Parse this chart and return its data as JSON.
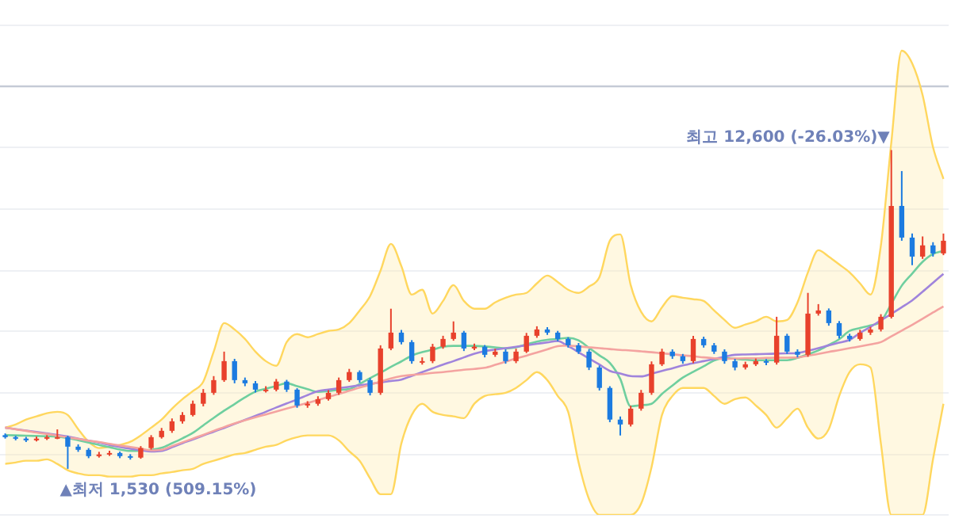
{
  "chart_data": {
    "type": "candlestick",
    "categories": [
      null,
      null,
      null,
      null,
      null,
      null,
      null,
      null,
      null,
      null,
      null,
      null,
      null,
      null,
      null,
      null,
      null,
      null,
      null,
      null,
      null,
      null,
      null,
      null,
      null,
      null,
      null,
      null,
      null,
      null,
      null,
      null,
      null,
      null,
      null,
      null,
      null,
      null,
      null,
      null,
      null,
      null,
      null,
      null,
      null,
      null,
      null,
      null,
      null,
      null,
      null,
      null,
      null,
      null,
      null,
      null,
      null,
      null,
      null,
      null,
      null,
      null,
      null,
      null,
      null,
      null,
      null,
      null,
      null,
      null,
      null,
      null,
      null,
      null,
      null,
      null,
      null,
      null,
      null,
      null,
      null,
      null,
      null,
      null,
      null,
      null,
      null,
      null,
      null,
      null,
      null
    ],
    "ohlc": [
      [
        2700,
        2760,
        2580,
        2630
      ],
      [
        2630,
        2680,
        2520,
        2580
      ],
      [
        2580,
        2640,
        2460,
        2520
      ],
      [
        2520,
        2650,
        2480,
        2580
      ],
      [
        2580,
        2700,
        2530,
        2630
      ],
      [
        2630,
        2900,
        2560,
        2630
      ],
      [
        2630,
        2680,
        1530,
        2300
      ],
      [
        2300,
        2380,
        2120,
        2190
      ],
      [
        2190,
        2250,
        1900,
        1970
      ],
      [
        1970,
        2120,
        1920,
        2030
      ],
      [
        2030,
        2160,
        1980,
        2080
      ],
      [
        2080,
        2130,
        1900,
        1970
      ],
      [
        1970,
        2040,
        1850,
        1920
      ],
      [
        1920,
        2320,
        1880,
        2250
      ],
      [
        2250,
        2700,
        2200,
        2630
      ],
      [
        2630,
        2950,
        2580,
        2850
      ],
      [
        2850,
        3280,
        2780,
        3180
      ],
      [
        3180,
        3500,
        3100,
        3400
      ],
      [
        3400,
        3900,
        3350,
        3790
      ],
      [
        3790,
        4300,
        3700,
        4170
      ],
      [
        4170,
        4750,
        4100,
        4610
      ],
      [
        4610,
        5600,
        4550,
        5270
      ],
      [
        5270,
        5350,
        4500,
        4610
      ],
      [
        4610,
        4700,
        4400,
        4500
      ],
      [
        4500,
        4580,
        4180,
        4280
      ],
      [
        4280,
        4400,
        4180,
        4280
      ],
      [
        4280,
        4650,
        4220,
        4560
      ],
      [
        4560,
        4620,
        4200,
        4280
      ],
      [
        4280,
        4330,
        3650,
        3730
      ],
      [
        3730,
        3880,
        3650,
        3790
      ],
      [
        3790,
        4050,
        3720,
        3950
      ],
      [
        3950,
        4260,
        3900,
        4170
      ],
      [
        4170,
        4700,
        4100,
        4610
      ],
      [
        4610,
        5000,
        4550,
        4890
      ],
      [
        4890,
        4950,
        4520,
        4610
      ],
      [
        4610,
        4680,
        4080,
        4170
      ],
      [
        4170,
        5820,
        4100,
        5710
      ],
      [
        5710,
        7090,
        5650,
        6260
      ],
      [
        6260,
        6350,
        5850,
        5930
      ],
      [
        5930,
        6000,
        5180,
        5270
      ],
      [
        5270,
        5400,
        5150,
        5270
      ],
      [
        5270,
        5870,
        5200,
        5770
      ],
      [
        5770,
        6150,
        5700,
        6040
      ],
      [
        6040,
        6650,
        5980,
        6260
      ],
      [
        6260,
        6320,
        5620,
        5710
      ],
      [
        5710,
        5880,
        5650,
        5770
      ],
      [
        5770,
        5830,
        5400,
        5490
      ],
      [
        5490,
        5700,
        5420,
        5600
      ],
      [
        5600,
        5680,
        5180,
        5270
      ],
      [
        5270,
        5700,
        5200,
        5600
      ],
      [
        5600,
        6250,
        5550,
        6150
      ],
      [
        6150,
        6480,
        6080,
        6370
      ],
      [
        6370,
        6450,
        6180,
        6260
      ],
      [
        6260,
        6320,
        5960,
        6040
      ],
      [
        6040,
        6100,
        5740,
        5820
      ],
      [
        5820,
        5900,
        5520,
        5600
      ],
      [
        5600,
        5680,
        4960,
        5050
      ],
      [
        5050,
        5120,
        4250,
        4340
      ],
      [
        4340,
        4400,
        3150,
        3240
      ],
      [
        3240,
        3350,
        2690,
        3070
      ],
      [
        3070,
        3720,
        3000,
        3620
      ],
      [
        3620,
        4270,
        3550,
        4170
      ],
      [
        4170,
        5260,
        4100,
        5160
      ],
      [
        5160,
        5700,
        5100,
        5600
      ],
      [
        5600,
        5680,
        5350,
        5440
      ],
      [
        5440,
        5520,
        5180,
        5270
      ],
      [
        5270,
        6150,
        5200,
        6040
      ],
      [
        6040,
        6120,
        5740,
        5820
      ],
      [
        5820,
        5900,
        5520,
        5600
      ],
      [
        5600,
        5680,
        5180,
        5270
      ],
      [
        5270,
        5350,
        4950,
        5050
      ],
      [
        5050,
        5250,
        4980,
        5160
      ],
      [
        5160,
        5360,
        5100,
        5270
      ],
      [
        5270,
        5340,
        5130,
        5220
      ],
      [
        5220,
        6810,
        5150,
        6150
      ],
      [
        6150,
        6220,
        5520,
        5600
      ],
      [
        5600,
        5680,
        5400,
        5490
      ],
      [
        5490,
        7640,
        5420,
        6920
      ],
      [
        6920,
        7250,
        6850,
        7030
      ],
      [
        7030,
        7100,
        6500,
        6590
      ],
      [
        6590,
        6660,
        6060,
        6150
      ],
      [
        6150,
        6220,
        5950,
        6040
      ],
      [
        6040,
        6360,
        5980,
        6260
      ],
      [
        6260,
        6460,
        6180,
        6370
      ],
      [
        6370,
        6900,
        6300,
        6810
      ],
      [
        6810,
        12600,
        6750,
        10660
      ],
      [
        10660,
        11870,
        9450,
        9560
      ],
      [
        9560,
        9700,
        8600,
        8900
      ],
      [
        8900,
        9600,
        8820,
        9290
      ],
      [
        9290,
        9400,
        8900,
        9010
      ],
      [
        9010,
        9700,
        8950,
        9450
      ]
    ],
    "colors": [
      "#1c7be0",
      "#1c7be0",
      "#1c7be0",
      "#e8412c",
      "#e8412c",
      "#e8412c",
      "#1c7be0",
      "#1c7be0",
      "#1c7be0",
      "#e8412c",
      "#e8412c",
      "#1c7be0",
      "#1c7be0",
      "#e8412c",
      "#e8412c",
      "#e8412c",
      "#e8412c",
      "#e8412c",
      "#e8412c",
      "#e8412c",
      "#e8412c",
      "#e8412c",
      "#1c7be0",
      "#1c7be0",
      "#1c7be0",
      "#e8412c",
      "#e8412c",
      "#1c7be0",
      "#1c7be0",
      "#e8412c",
      "#e8412c",
      "#e8412c",
      "#e8412c",
      "#e8412c",
      "#1c7be0",
      "#1c7be0",
      "#e8412c",
      "#e8412c",
      "#1c7be0",
      "#1c7be0",
      "#e8412c",
      "#e8412c",
      "#e8412c",
      "#e8412c",
      "#1c7be0",
      "#e8412c",
      "#1c7be0",
      "#e8412c",
      "#1c7be0",
      "#e8412c",
      "#e8412c",
      "#e8412c",
      "#1c7be0",
      "#1c7be0",
      "#1c7be0",
      "#1c7be0",
      "#1c7be0",
      "#1c7be0",
      "#1c7be0",
      "#1c7be0",
      "#e8412c",
      "#e8412c",
      "#e8412c",
      "#e8412c",
      "#1c7be0",
      "#1c7be0",
      "#e8412c",
      "#1c7be0",
      "#1c7be0",
      "#1c7be0",
      "#1c7be0",
      "#e8412c",
      "#e8412c",
      "#1c7be0",
      "#e8412c",
      "#1c7be0",
      "#1c7be0",
      "#e8412c",
      "#e8412c",
      "#1c7be0",
      "#1c7be0",
      "#1c7be0",
      "#e8412c",
      "#e8412c",
      "#e8412c",
      "#e8412c",
      "#1c7be0",
      "#1c7be0",
      "#e8412c",
      "#1c7be0",
      "#e8412c"
    ],
    "series": [
      {
        "type": "line",
        "color": "#f4a3a0",
        "values": [
          2960,
          2900,
          2850,
          2790,
          2740,
          2680,
          2620,
          2570,
          2510,
          2460,
          2400,
          2340,
          2290,
          2230,
          2170,
          2190,
          2320,
          2450,
          2580,
          2710,
          2850,
          2980,
          3110,
          3220,
          3320,
          3420,
          3520,
          3620,
          3720,
          3820,
          3920,
          4030,
          4130,
          4240,
          4350,
          4450,
          4560,
          4670,
          4750,
          4790,
          4820,
          4860,
          4890,
          4930,
          4970,
          5000,
          5040,
          5140,
          5250,
          5360,
          5460,
          5570,
          5680,
          5790,
          5810,
          5780,
          5750,
          5720,
          5690,
          5660,
          5640,
          5610,
          5580,
          5540,
          5510,
          5470,
          5440,
          5400,
          5370,
          5350,
          5360,
          5370,
          5370,
          5380,
          5390,
          5390,
          5400,
          5460,
          5520,
          5590,
          5650,
          5720,
          5780,
          5850,
          5930,
          6130,
          6330,
          6530,
          6740,
          6960,
          7170
        ]
      },
      {
        "type": "line",
        "color": "#a084dc",
        "values": [
          2960,
          2910,
          2860,
          2810,
          2760,
          2710,
          2650,
          2580,
          2510,
          2440,
          2360,
          2290,
          2230,
          2180,
          2130,
          2150,
          2280,
          2420,
          2550,
          2690,
          2820,
          2950,
          3090,
          3230,
          3370,
          3510,
          3660,
          3800,
          3940,
          4090,
          4230,
          4280,
          4330,
          4380,
          4430,
          4480,
          4530,
          4580,
          4630,
          4760,
          4890,
          5020,
          5150,
          5270,
          5400,
          5530,
          5620,
          5670,
          5720,
          5770,
          5820,
          5870,
          5920,
          5970,
          5790,
          5580,
          5360,
          5150,
          4930,
          4840,
          4750,
          4740,
          4830,
          4930,
          5020,
          5120,
          5200,
          5270,
          5340,
          5420,
          5490,
          5500,
          5510,
          5520,
          5530,
          5540,
          5550,
          5630,
          5720,
          5820,
          5910,
          6010,
          6250,
          6460,
          6690,
          6910,
          7140,
          7380,
          7680,
          7990,
          8300
        ]
      },
      {
        "type": "line",
        "color": "#6fcf9f",
        "values": [
          2700,
          2690,
          2680,
          2670,
          2660,
          2650,
          2600,
          2520,
          2440,
          2360,
          2280,
          2200,
          2150,
          2160,
          2190,
          2260,
          2420,
          2590,
          2780,
          3040,
          3300,
          3550,
          3780,
          4010,
          4210,
          4310,
          4410,
          4500,
          4400,
          4300,
          4200,
          4230,
          4270,
          4300,
          4480,
          4680,
          4870,
          5070,
          5260,
          5460,
          5580,
          5670,
          5770,
          5800,
          5800,
          5800,
          5780,
          5750,
          5710,
          5750,
          5850,
          5950,
          6010,
          6040,
          6080,
          5990,
          5730,
          5470,
          5210,
          4650,
          3700,
          3740,
          3790,
          4130,
          4420,
          4700,
          4900,
          5090,
          5290,
          5380,
          5350,
          5320,
          5300,
          5300,
          5300,
          5300,
          5380,
          5510,
          5640,
          5830,
          6030,
          6320,
          6420,
          6510,
          6650,
          7260,
          7890,
          8310,
          8720,
          8990,
          9100
        ],
        "upper": [
          2960,
          3070,
          3240,
          3350,
          3460,
          3510,
          3400,
          2910,
          2470,
          2250,
          2300,
          2360,
          2470,
          2690,
          2960,
          3240,
          3620,
          3950,
          4230,
          4560,
          5600,
          6590,
          6370,
          6040,
          5600,
          5270,
          5110,
          5930,
          6210,
          6100,
          6210,
          6320,
          6370,
          6590,
          7030,
          7530,
          8410,
          9340,
          8570,
          7580,
          7750,
          6920,
          7360,
          7910,
          7360,
          7090,
          7090,
          7310,
          7470,
          7580,
          7640,
          7970,
          8240,
          8020,
          7750,
          7640,
          7860,
          8190,
          9450,
          9670,
          7910,
          6980,
          6650,
          7140,
          7530,
          7470,
          7420,
          7360,
          7030,
          6700,
          6430,
          6540,
          6650,
          6810,
          6650,
          6700,
          7310,
          8350,
          9120,
          8900,
          8630,
          8350,
          7970,
          7580,
          9290,
          12860,
          16050,
          15610,
          14510,
          12700,
          11600
        ],
        "lower": [
          1700,
          1750,
          1810,
          1810,
          1860,
          1700,
          1480,
          1370,
          1310,
          1310,
          1260,
          1260,
          1260,
          1310,
          1310,
          1370,
          1420,
          1480,
          1530,
          1700,
          1810,
          1920,
          2030,
          2080,
          2190,
          2300,
          2360,
          2520,
          2630,
          2690,
          2690,
          2690,
          2520,
          2140,
          1810,
          1200,
          650,
          650,
          2410,
          3400,
          3790,
          3510,
          3400,
          3350,
          3290,
          3790,
          4060,
          4120,
          4170,
          4340,
          4610,
          4890,
          4610,
          4060,
          3510,
          1750,
          480,
          -70,
          -70,
          -70,
          -70,
          320,
          1590,
          3400,
          4060,
          4340,
          4340,
          4340,
          4060,
          3790,
          3950,
          4010,
          3730,
          3400,
          2960,
          3290,
          3620,
          2960,
          2580,
          2910,
          4060,
          4890,
          5160,
          5050,
          2410,
          -70,
          -70,
          -70,
          -70,
          1860,
          3790
        ]
      },
      {
        "type": "line",
        "color": "#ffd75e",
        "values": [
          2960,
          3070,
          3240,
          3350,
          3460,
          3510,
          3400,
          2910,
          2470,
          2250,
          2300,
          2360,
          2470,
          2690,
          2960,
          3240,
          3620,
          3950,
          4230,
          4560,
          5600,
          6590,
          6370,
          6040,
          5600,
          5270,
          5110,
          5930,
          6210,
          6100,
          6210,
          6320,
          6370,
          6590,
          7030,
          7530,
          8410,
          9340,
          8570,
          7580,
          7750,
          6920,
          7360,
          7910,
          7360,
          7090,
          7090,
          7310,
          7470,
          7580,
          7640,
          7970,
          8240,
          8020,
          7750,
          7640,
          7860,
          8190,
          9450,
          9670,
          7910,
          6980,
          6650,
          7140,
          7530,
          7470,
          7420,
          7360,
          7030,
          6700,
          6430,
          6540,
          6650,
          6810,
          6650,
          6700,
          7310,
          8350,
          9120,
          8900,
          8630,
          8350,
          7970,
          7580,
          9290,
          12860,
          16050,
          15610,
          14510,
          12700,
          11600
        ]
      },
      {
        "type": "line",
        "color": "#ffd75e",
        "values": [
          1700,
          1750,
          1810,
          1810,
          1860,
          1700,
          1480,
          1370,
          1310,
          1310,
          1260,
          1260,
          1260,
          1310,
          1310,
          1370,
          1420,
          1480,
          1530,
          1700,
          1810,
          1920,
          2030,
          2080,
          2190,
          2300,
          2360,
          2520,
          2630,
          2690,
          2690,
          2690,
          2520,
          2140,
          1810,
          1200,
          650,
          650,
          2410,
          3400,
          3790,
          3510,
          3400,
          3350,
          3290,
          3790,
          4060,
          4120,
          4170,
          4340,
          4610,
          4890,
          4610,
          4060,
          3510,
          1750,
          480,
          -70,
          -70,
          -70,
          -70,
          320,
          1590,
          3400,
          4060,
          4340,
          4340,
          4340,
          4060,
          3790,
          3950,
          4010,
          3730,
          3400,
          2960,
          3290,
          3620,
          2960,
          2580,
          2910,
          4060,
          4890,
          5160,
          5050,
          2410,
          -70,
          -70,
          -70,
          -70,
          1860,
          3790
        ]
      }
    ],
    "ylim": [
      -70,
      16930
    ],
    "yticks": [
      {
        "value": -70,
        "label": null
      },
      {
        "value": 2030,
        "label": null
      },
      {
        "value": 4170,
        "label": null
      },
      {
        "value": 6320,
        "label": null
      },
      {
        "value": 8410,
        "label": null
      },
      {
        "value": 10550,
        "label": null
      },
      {
        "value": 12700,
        "label": null
      },
      {
        "value": 14810,
        "label": null
      },
      {
        "value": 16930,
        "label": null
      }
    ],
    "ref_lines": [
      {
        "axis": "y",
        "value": 14810,
        "color": "#c5cad6"
      }
    ],
    "annotations": [
      "최고 12,600 (-26.03%)▼",
      "▲최저 1,530 (509.15%)"
    ],
    "grid": "y",
    "legend": false,
    "line_style": "solid",
    "marker": "none"
  }
}
